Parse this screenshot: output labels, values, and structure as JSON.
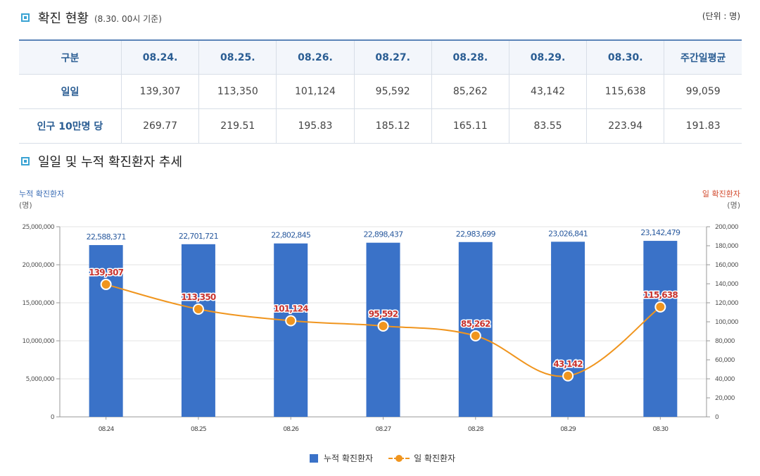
{
  "section1": {
    "title": "확진 현황",
    "note": "(8.30. 00시 기준)",
    "unit": "(단위 : 명)"
  },
  "table": {
    "headers": [
      "구분",
      "08.24.",
      "08.25.",
      "08.26.",
      "08.27.",
      "08.28.",
      "08.29.",
      "08.30.",
      "주간일평균"
    ],
    "rows": [
      {
        "label": "일일",
        "values": [
          "139,307",
          "113,350",
          "101,124",
          "95,592",
          "85,262",
          "43,142",
          "115,638",
          "99,059"
        ]
      },
      {
        "label": "인구 10만명 당",
        "values": [
          "269.77",
          "219.51",
          "195.83",
          "185.12",
          "165.11",
          "83.55",
          "223.94",
          "191.83"
        ]
      }
    ]
  },
  "section2": {
    "title": "일일 및 누적 확진환자 추세"
  },
  "axis": {
    "left_title": "누적 확진환자",
    "left_unit": "(명)",
    "right_title": "일 확진환자",
    "right_unit": "(명)"
  },
  "legend": {
    "bar": "누적 확진환자",
    "line": "일 확진환자"
  },
  "colors": {
    "bar": "#3a72c8",
    "line": "#f0951e",
    "line_label": "#c8332e",
    "left_axis": "#3a6cb5",
    "right_axis": "#d24a2e"
  },
  "chart_data": {
    "type": "bar+line",
    "categories": [
      "08.24",
      "08.25",
      "08.26",
      "08.27",
      "08.28",
      "08.29",
      "08.30"
    ],
    "series": [
      {
        "name": "누적 확진환자",
        "type": "bar",
        "axis": "left",
        "values": [
          22588371,
          22701721,
          22802845,
          22898437,
          22983699,
          23026841,
          23142479
        ],
        "labels": [
          "22,588,371",
          "22,701,721",
          "22,802,845",
          "22,898,437",
          "22,983,699",
          "23,026,841",
          "23,142,479"
        ]
      },
      {
        "name": "일 확진환자",
        "type": "line",
        "axis": "right",
        "values": [
          139307,
          113350,
          101124,
          95592,
          85262,
          43142,
          115638
        ],
        "labels": [
          "139,307",
          "113,350",
          "101,124",
          "95,592",
          "85,262",
          "43,142",
          "115,638"
        ]
      }
    ],
    "left_axis": {
      "ylim": [
        0,
        25000000
      ],
      "ticks": [
        "0",
        "5,000,000",
        "10,000,000",
        "15,000,000",
        "20,000,000",
        "25,000,000"
      ]
    },
    "right_axis": {
      "ylim": [
        0,
        200000
      ],
      "ticks": [
        "0",
        "20,000",
        "40,000",
        "60,000",
        "80,000",
        "100,000",
        "120,000",
        "140,000",
        "160,000",
        "180,000",
        "200,000"
      ]
    },
    "grid": true,
    "legend_position": "bottom"
  }
}
